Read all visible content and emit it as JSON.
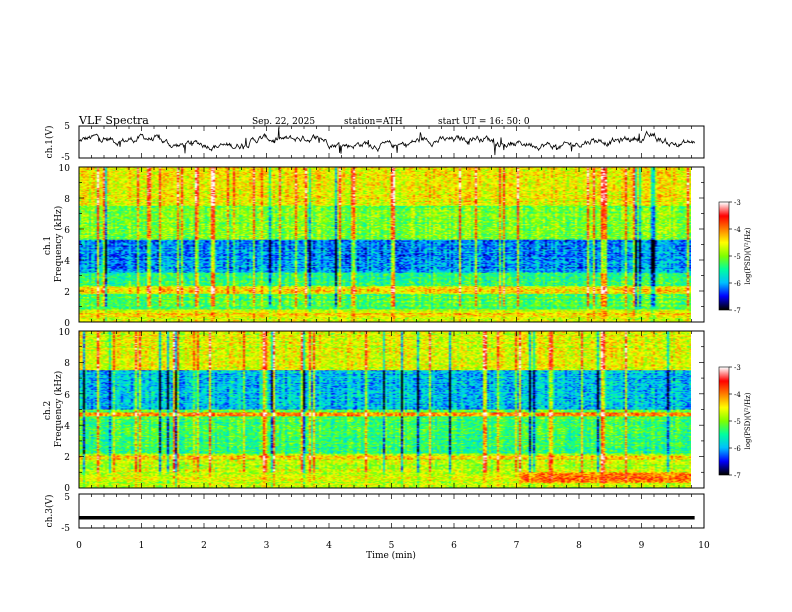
{
  "header": {
    "title": "VLF  Spectra",
    "date": "Sep. 22, 2025",
    "station": "station=ATH",
    "start": "start  UT  =    16: 50: 0"
  },
  "colors": {
    "stops": [
      "#000000",
      "#0000ff",
      "#00c0ff",
      "#00ffa0",
      "#7fff00",
      "#ffff00",
      "#ff8000",
      "#ff0000",
      "#ffffff"
    ]
  },
  "chart_data": [
    {
      "type": "line",
      "name": "ch1-voltage",
      "ylabel": "ch.1(V)",
      "ylim": [
        -5,
        5
      ],
      "yticks": [
        "5",
        "-5"
      ],
      "xlim": [
        0,
        10
      ]
    },
    {
      "type": "heatmap",
      "name": "ch1-spectrogram",
      "ylabel": "ch.1\nFrequency (kHz)",
      "ylim": [
        0,
        10
      ],
      "xlim": [
        0,
        9.8
      ],
      "yticks": [
        "0",
        "2",
        "4",
        "6",
        "8",
        "10"
      ],
      "colorbar": {
        "label": "log(PSD)(V²/Hz)",
        "range": [
          -7,
          -3
        ],
        "ticks": [
          "-3",
          "-4",
          "-5",
          "-6",
          "-7"
        ]
      },
      "features": {
        "strong_band_khz": [
          1.9,
          2.2
        ],
        "low_power_band_khz": [
          3.2,
          5.2
        ]
      }
    },
    {
      "type": "heatmap",
      "name": "ch2-spectrogram",
      "ylabel": "ch.2\nFrequency (kHz)",
      "ylim": [
        0,
        10
      ],
      "xlim": [
        0,
        9.8
      ],
      "yticks": [
        "0",
        "2",
        "4",
        "6",
        "8",
        "10"
      ],
      "colorbar": {
        "label": "log(PSD)(V²/Hz)",
        "range": [
          -7,
          -3
        ],
        "ticks": [
          "-3",
          "-4",
          "-5",
          "-6",
          "-7"
        ]
      },
      "features": {
        "strong_lines_khz": [
          1.9,
          4.7
        ],
        "low_power_band_khz": [
          5.0,
          7.0
        ]
      }
    },
    {
      "type": "line",
      "name": "ch3-voltage",
      "ylabel": "ch.3(V)",
      "ylim": [
        -5,
        5
      ],
      "yticks": [
        "5",
        "-5"
      ],
      "xlim": [
        0,
        10
      ],
      "level_v": -2
    }
  ],
  "xaxis": {
    "label": "Time  (min)",
    "ticks": [
      "0",
      "1",
      "2",
      "3",
      "4",
      "5",
      "6",
      "7",
      "8",
      "9",
      "10"
    ]
  }
}
